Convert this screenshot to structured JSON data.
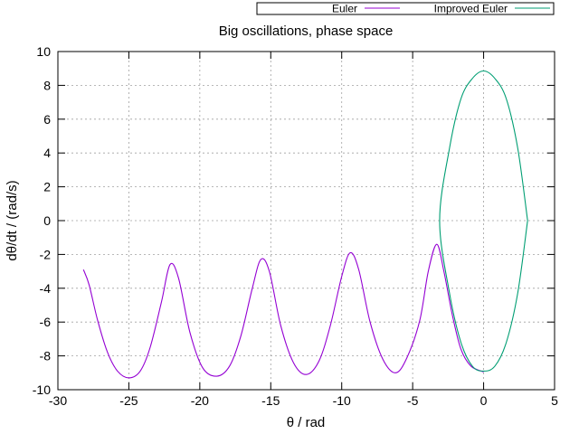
{
  "chart_data": {
    "type": "line",
    "title": "Big oscillations, phase space",
    "xlabel": "θ / rad",
    "ylabel": "dθ/dt / (rad/s)",
    "xlim": [
      -30,
      5
    ],
    "ylim": [
      -10,
      10
    ],
    "xticks": [
      -30,
      -25,
      -20,
      -15,
      -10,
      -5,
      0,
      5
    ],
    "yticks": [
      -10,
      -8,
      -6,
      -4,
      -2,
      0,
      2,
      4,
      6,
      8,
      10
    ],
    "grid": true,
    "legend_position": "top-right",
    "series": [
      {
        "name": "Euler",
        "color": "#9400d3",
        "x": [
          -28.2,
          -27.8,
          -27.2,
          -26.5,
          -25.8,
          -25.0,
          -24.2,
          -23.5,
          -22.7,
          -22.1,
          -21.5,
          -20.7,
          -19.8,
          -18.8,
          -17.9,
          -17.1,
          -16.3,
          -15.7,
          -15.1,
          -14.3,
          -13.4,
          -12.5,
          -11.6,
          -10.8,
          -10.0,
          -9.4,
          -8.8,
          -8.0,
          -7.1,
          -6.2,
          -5.4,
          -4.5,
          -3.9,
          -3.3,
          -2.8,
          -2.2,
          -1.6,
          -0.9,
          0.0
        ],
        "y": [
          -2.9,
          -3.8,
          -5.9,
          -7.8,
          -8.9,
          -9.3,
          -8.9,
          -7.5,
          -4.8,
          -2.6,
          -3.4,
          -6.6,
          -8.7,
          -9.2,
          -8.6,
          -6.8,
          -4.0,
          -2.3,
          -3.0,
          -6.2,
          -8.4,
          -9.1,
          -8.3,
          -6.2,
          -3.3,
          -1.9,
          -2.9,
          -6.0,
          -8.2,
          -9.0,
          -8.1,
          -5.9,
          -3.0,
          -1.4,
          -3.0,
          -5.6,
          -7.6,
          -8.6,
          -8.95
        ]
      },
      {
        "name": "Improved Euler",
        "color": "#009e73",
        "x": [
          3.1,
          2.4,
          1.6,
          0.8,
          0.0,
          -0.8,
          -1.6,
          -2.4,
          -3.1,
          -2.4,
          -1.6,
          -0.8,
          0.0,
          0.8,
          1.6,
          2.4,
          3.1
        ],
        "y": [
          0.0,
          -4.3,
          -7.2,
          -8.6,
          -8.9,
          -8.6,
          -7.2,
          -4.3,
          0.0,
          4.3,
          7.2,
          8.4,
          8.85,
          8.4,
          7.2,
          4.3,
          0.0
        ]
      }
    ]
  }
}
